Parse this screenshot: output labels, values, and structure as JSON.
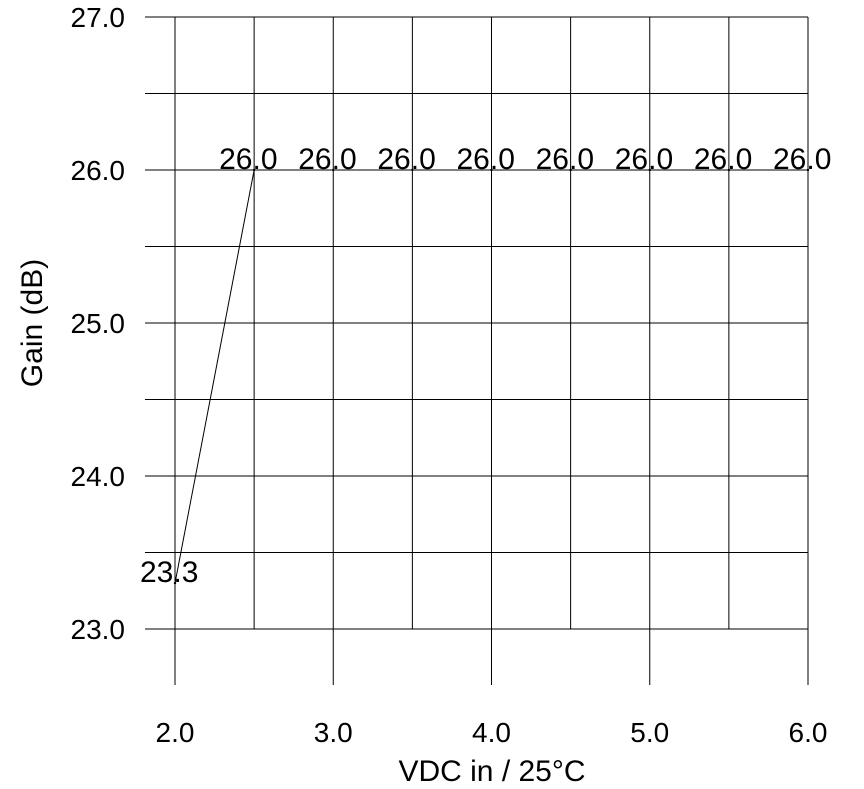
{
  "chart_data": {
    "type": "line",
    "title": "",
    "xlabel": "VDC in / 25°C",
    "ylabel": "Gain (dB)",
    "xlim": [
      2.0,
      6.0
    ],
    "ylim": [
      23.0,
      27.0
    ],
    "x_ticks": [
      "2.0",
      "3.0",
      "4.0",
      "5.0",
      "6.0"
    ],
    "y_ticks": [
      "23.0",
      "24.0",
      "25.0",
      "26.0",
      "27.0"
    ],
    "grid": true,
    "series": [
      {
        "x": [
          2.0,
          2.5,
          3.0,
          3.5,
          4.0,
          4.5,
          5.0,
          5.5,
          6.0
        ],
        "values": [
          23.3,
          26.0,
          26.0,
          26.0,
          26.0,
          26.0,
          26.0,
          26.0,
          26.0
        ],
        "labels": [
          "23.3",
          "26.0",
          "26.0",
          "26.0",
          "26.0",
          "26.0",
          "26.0",
          "26.0",
          "26.0"
        ]
      }
    ]
  }
}
